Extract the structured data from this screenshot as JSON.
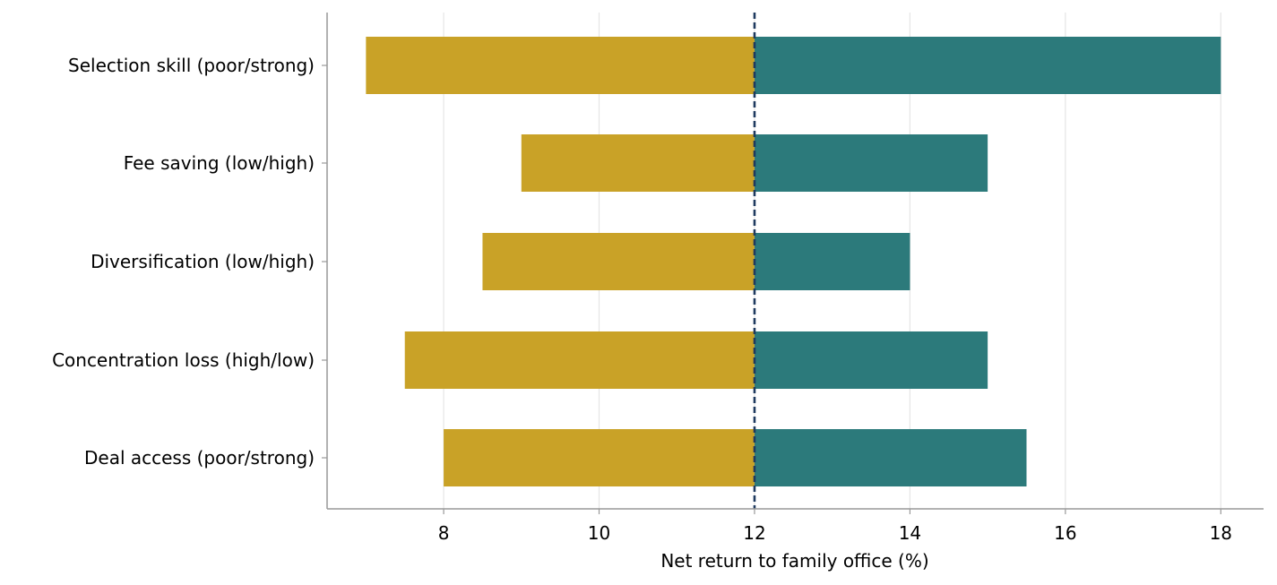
{
  "chart_data": {
    "type": "bar",
    "orientation": "horizontal",
    "subtype": "tornado",
    "title": "",
    "xlabel": "Net return to family office (%)",
    "ylabel": "",
    "xlim": [
      6.5,
      18.55
    ],
    "xticks": [
      8,
      10,
      12,
      14,
      16,
      18
    ],
    "xtick_labels": [
      "8",
      "10",
      "12",
      "14",
      "16",
      "18"
    ],
    "baseline": 12,
    "grid": "vertical",
    "legend": "none",
    "categories": [
      "Selection skill (poor/strong)",
      "Fee saving (low/high)",
      "Diversification (low/high)",
      "Concentration loss (high/low)",
      "Deal access (poor/strong)"
    ],
    "series": [
      {
        "values": [
          7.0,
          9.0,
          8.5,
          7.5,
          8.0
        ],
        "color": "#C9A227"
      },
      {
        "values": [
          18.0,
          15.0,
          14.0,
          15.0,
          15.5
        ],
        "color": "#2C7A7B"
      }
    ],
    "colors": {
      "low": "#C9A227",
      "high": "#2C7A7B",
      "baseline_line": "#1F3A5F",
      "grid": "#E5E5E5",
      "axis": "#999999"
    }
  }
}
